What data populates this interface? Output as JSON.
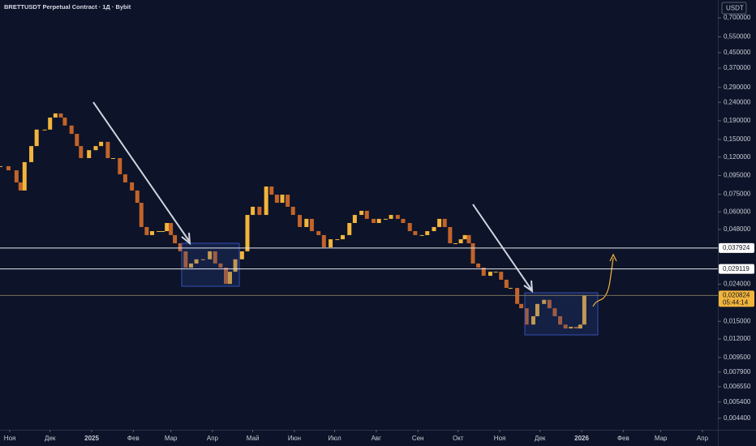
{
  "chart_data": {
    "type": "candlestick",
    "title": "BRETTUSDT Perpetual Contract · 1Д · Bybit",
    "currency": "USDT",
    "log_scale": true,
    "grid": false,
    "xlim": [
      -7.3,
      527.5
    ],
    "ylim": [
      0.0038,
      0.877
    ],
    "xticks": [
      {
        "value": 0,
        "label": "Ноя"
      },
      {
        "value": 30,
        "label": "Дек"
      },
      {
        "value": 61,
        "label": "2025"
      },
      {
        "value": 92,
        "label": "Фев"
      },
      {
        "value": 120,
        "label": "Мар"
      },
      {
        "value": 151,
        "label": "Апр"
      },
      {
        "value": 181,
        "label": "Май"
      },
      {
        "value": 212,
        "label": "Июн"
      },
      {
        "value": 242,
        "label": "Июл"
      },
      {
        "value": 273,
        "label": "Авг"
      },
      {
        "value": 304,
        "label": "Сен"
      },
      {
        "value": 334,
        "label": "Окт"
      },
      {
        "value": 365,
        "label": "Ноя"
      },
      {
        "value": 395,
        "label": "Дек"
      },
      {
        "value": 426,
        "label": "2026"
      },
      {
        "value": 457,
        "label": "Фев"
      },
      {
        "value": 485,
        "label": "Мар"
      },
      {
        "value": 516,
        "label": "Апр"
      }
    ],
    "yticks": [
      {
        "value": 0.7,
        "label": "0,700000"
      },
      {
        "value": 0.55,
        "label": "0,550000"
      },
      {
        "value": 0.45,
        "label": "0,450000"
      },
      {
        "value": 0.37,
        "label": "0,370000"
      },
      {
        "value": 0.29,
        "label": "0,290000"
      },
      {
        "value": 0.24,
        "label": "0,240000"
      },
      {
        "value": 0.19,
        "label": "0,190000"
      },
      {
        "value": 0.15,
        "label": "0,150000"
      },
      {
        "value": 0.12,
        "label": "0,120000"
      },
      {
        "value": 0.095,
        "label": "0,095000"
      },
      {
        "value": 0.075,
        "label": "0,075000"
      },
      {
        "value": 0.06,
        "label": "0,060000"
      },
      {
        "value": 0.048,
        "label": "0,048000"
      },
      {
        "value": 0.024,
        "label": "0,024000"
      },
      {
        "value": 0.015,
        "label": "0,015000"
      },
      {
        "value": 0.012,
        "label": "0,012000"
      },
      {
        "value": 0.0095,
        "label": "0,009500"
      },
      {
        "value": 0.0079,
        "label": "0,007900"
      },
      {
        "value": 0.00655,
        "label": "0,006550"
      },
      {
        "value": 0.0054,
        "label": "0,005400"
      },
      {
        "value": 0.0044,
        "label": "0,004400"
      }
    ],
    "levels": [
      {
        "value": 0.037924,
        "label": "0,037924"
      },
      {
        "value": 0.029119,
        "label": "0,029119"
      }
    ],
    "last_price": {
      "value": 0.020824,
      "label": "0,020824",
      "countdown": "05:44:14"
    },
    "up_color": "#f2b53c",
    "down_color": "#c2642a",
    "series": [
      {
        "name": "BRETTUSDT",
        "x": [
          -7,
          -1,
          5,
          8,
          11,
          16,
          20,
          26,
          30,
          34,
          38,
          41,
          46,
          50,
          53,
          59,
          64,
          68,
          73,
          77,
          82,
          86,
          91,
          95,
          98,
          102,
          106,
          111,
          114,
          117,
          120,
          123,
          127,
          131,
          135,
          139,
          144,
          149,
          153,
          157,
          161,
          164,
          168,
          173,
          177,
          181,
          186,
          191,
          195,
          199,
          203,
          207,
          211,
          216,
          221,
          225,
          230,
          234,
          239,
          244,
          248,
          253,
          257,
          262,
          266,
          271,
          275,
          280,
          284,
          289,
          293,
          298,
          302,
          307,
          311,
          316,
          320,
          324,
          328,
          332,
          336,
          339,
          342,
          345,
          349,
          353,
          358,
          362,
          366,
          370,
          373,
          378,
          381,
          385,
          390,
          393,
          398,
          402,
          406,
          410,
          414,
          418,
          422,
          425,
          428
        ],
        "values": [
          0.107,
          0.1015,
          0.0871,
          0.0786,
          0.1126,
          0.138,
          0.17,
          0.17,
          0.198,
          0.2086,
          0.198,
          0.179,
          0.161,
          0.138,
          0.1185,
          0.131,
          0.138,
          0.1456,
          0.1185,
          0.1185,
          0.0965,
          0.0871,
          0.0786,
          0.0673,
          0.0495,
          0.0447,
          0.047,
          0.047,
          0.047,
          0.0521,
          0.0447,
          0.0403,
          0.0364,
          0.0296,
          0.0312,
          0.0329,
          0.0329,
          0.0364,
          0.0312,
          0.0296,
          0.0241,
          0.0281,
          0.0329,
          0.0364,
          0.0577,
          0.064,
          0.0577,
          0.0827,
          0.0746,
          0.0673,
          0.0746,
          0.064,
          0.0577,
          0.0495,
          0.0549,
          0.047,
          0.0447,
          0.0383,
          0.0424,
          0.0424,
          0.0447,
          0.0521,
          0.0577,
          0.0608,
          0.0549,
          0.0521,
          0.0549,
          0.0549,
          0.0577,
          0.0549,
          0.0521,
          0.047,
          0.0447,
          0.0447,
          0.047,
          0.0495,
          0.0549,
          0.0495,
          0.0403,
          0.0403,
          0.0424,
          0.0447,
          0.0403,
          0.0312,
          0.0296,
          0.0267,
          0.0281,
          0.0281,
          0.0254,
          0.0229,
          0.0229,
          0.0187,
          0.0177,
          0.0144,
          0.016,
          0.0187,
          0.0197,
          0.0177,
          0.016,
          0.0144,
          0.0137,
          0.014,
          0.0137,
          0.0144,
          0.0208
        ]
      }
    ]
  }
}
